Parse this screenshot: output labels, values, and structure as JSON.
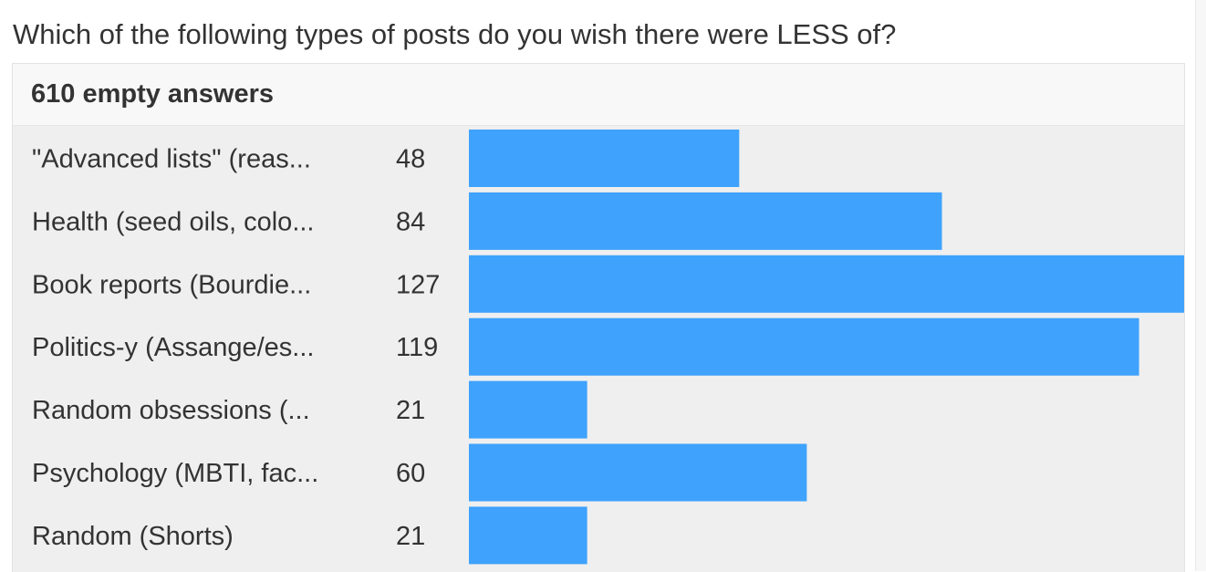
{
  "question": "Which of the following types of posts do you wish there were LESS of?",
  "card": {
    "header": "610 empty answers"
  },
  "colors": {
    "bar": "#3fa2fc",
    "background": "#efefef",
    "text": "#333333"
  },
  "chart_data": {
    "type": "bar",
    "orientation": "horizontal",
    "categories": [
      "\"Advanced lists\" (reas...",
      "Health (seed oils, colo...",
      "Book reports (Bourdie...",
      "Politics-y (Assange/es...",
      "Random obsessions (...",
      "Psychology (MBTI, fac...",
      "Random (Shorts)"
    ],
    "values": [
      48,
      84,
      127,
      119,
      21,
      60,
      21
    ],
    "xlim": [
      0,
      127
    ],
    "grid": false,
    "legend": "none"
  }
}
